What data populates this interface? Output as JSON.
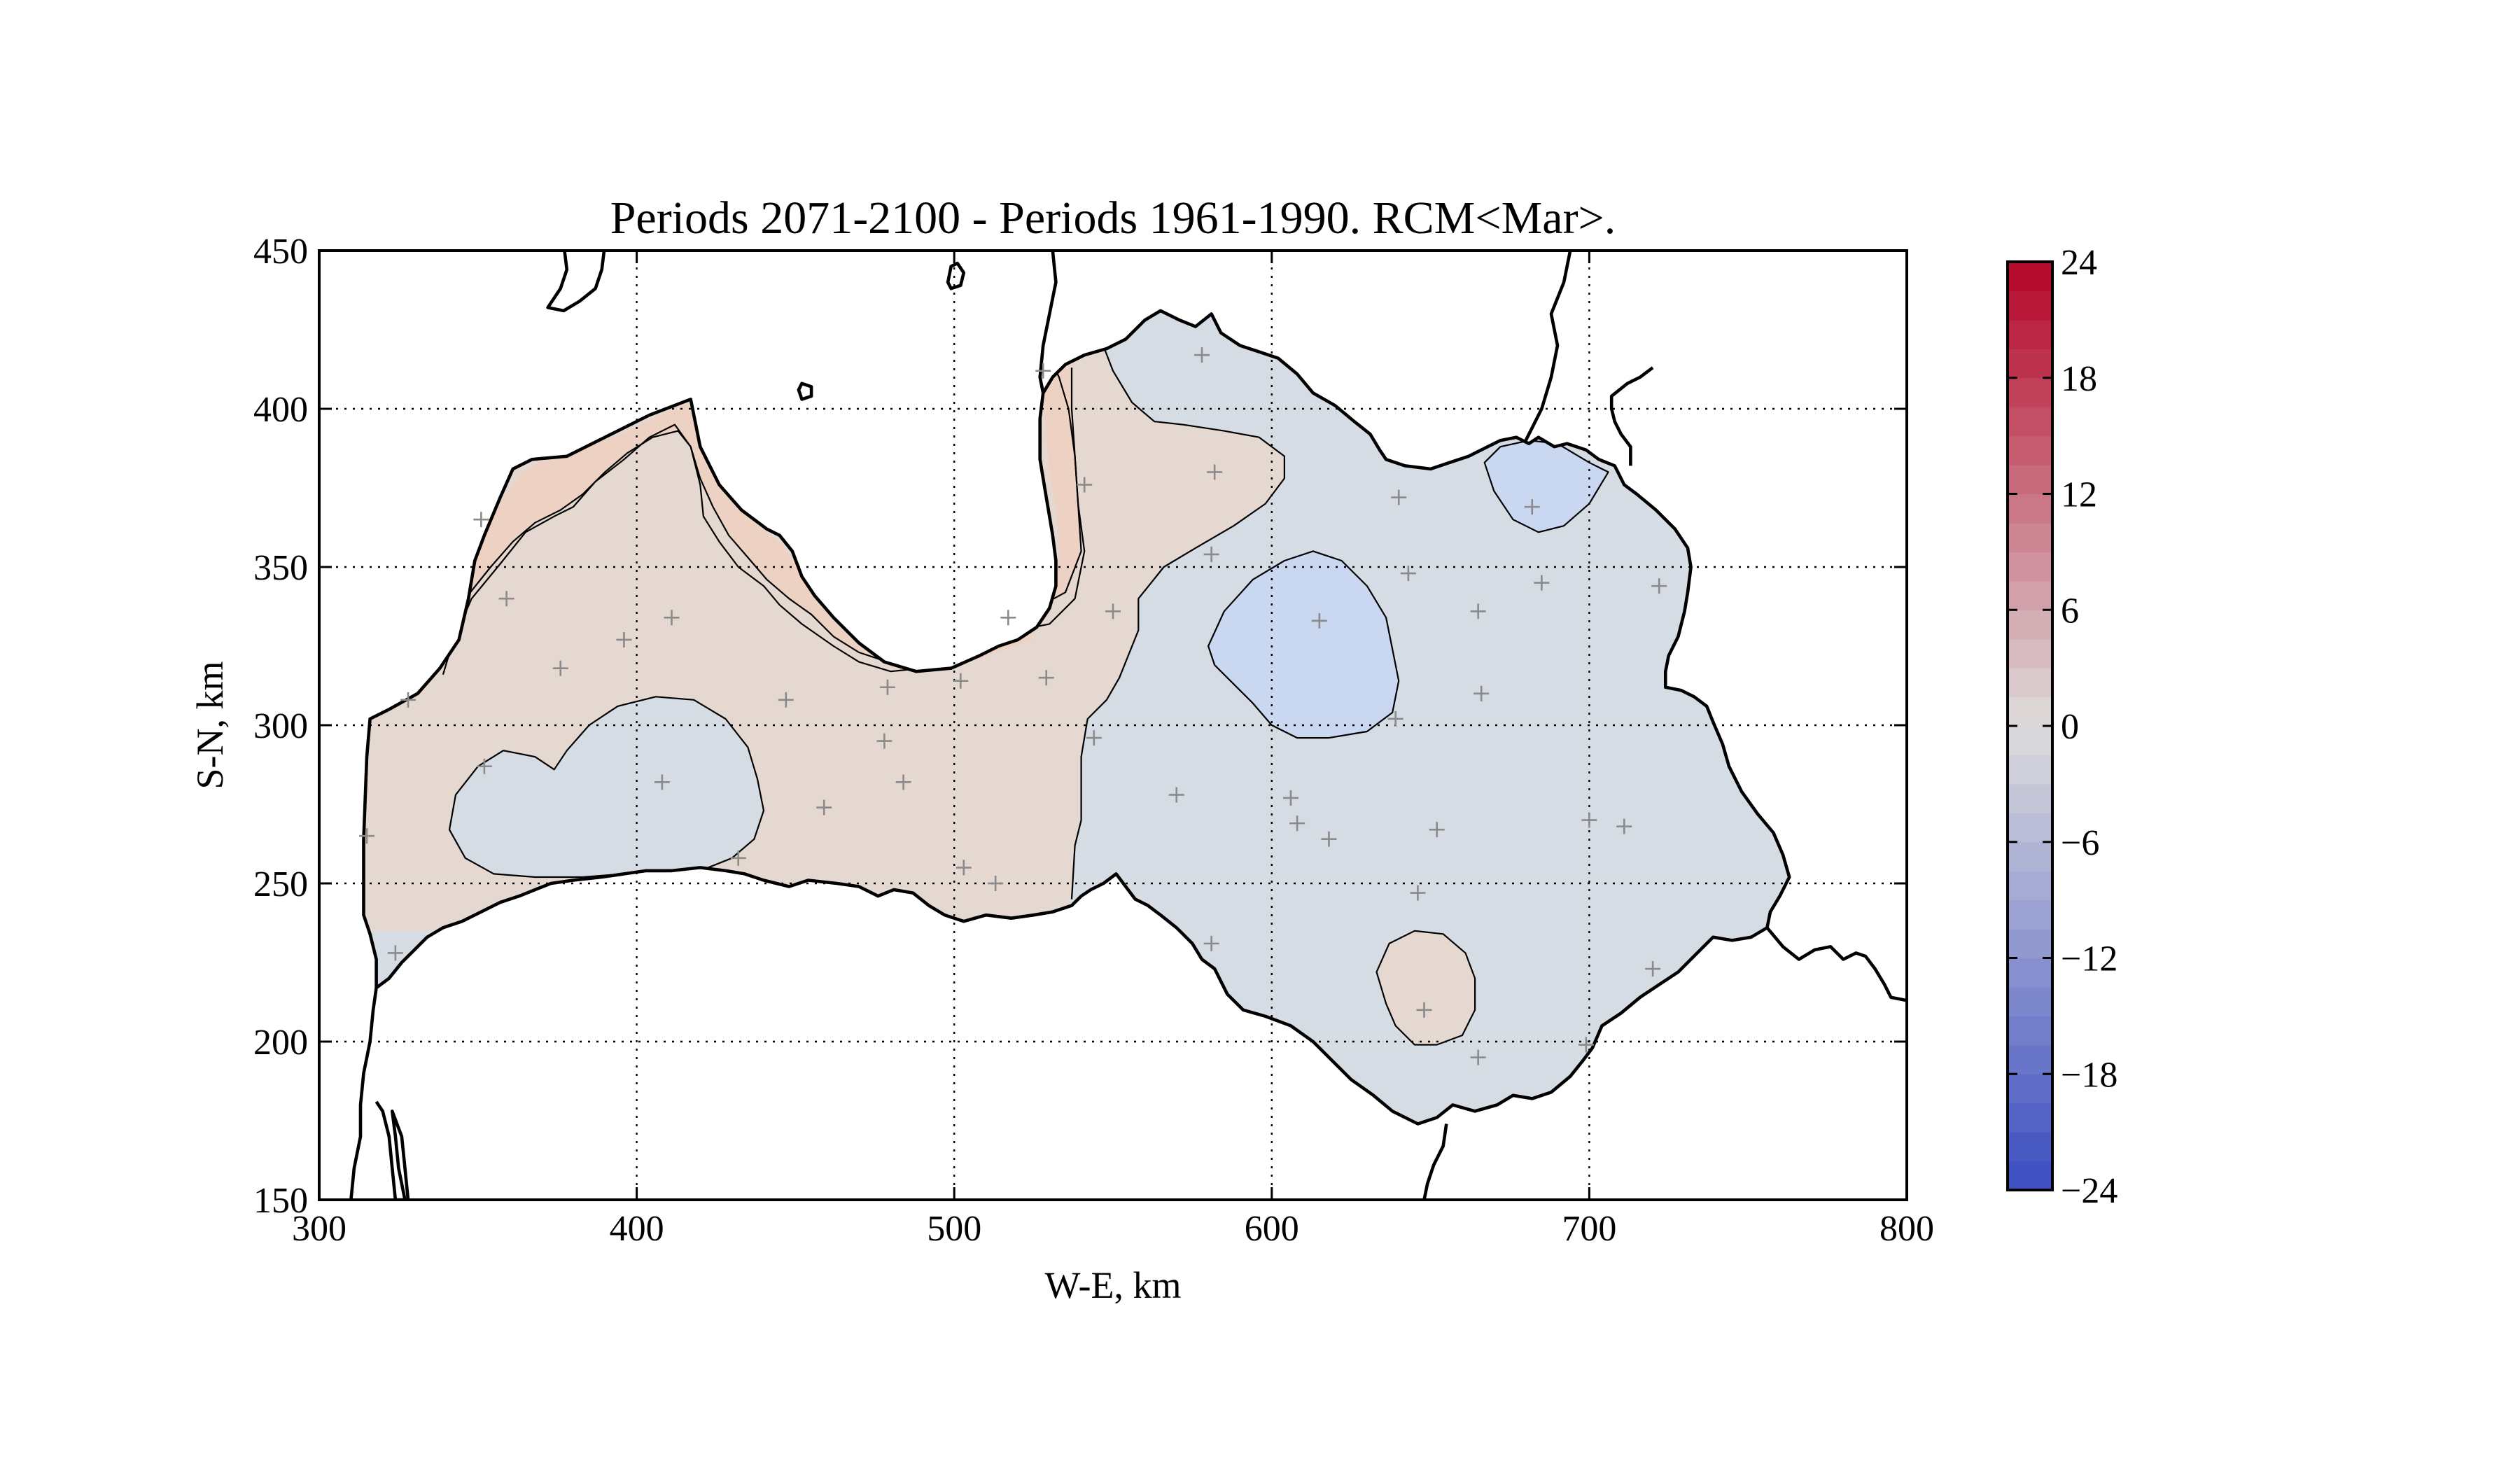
{
  "chart_data": {
    "type": "contour-map",
    "title": "Periods 2071-2100 - Periods 1961-1990. RCM<Mar>.",
    "xlabel": "W-E, km",
    "ylabel": "S-N, km",
    "xlim": [
      300,
      800
    ],
    "ylim": [
      150,
      450
    ],
    "xticks": [
      "300",
      "400",
      "500",
      "600",
      "700",
      "800"
    ],
    "yticks": [
      "150",
      "200",
      "250",
      "300",
      "350",
      "400",
      "450"
    ],
    "grid": true,
    "colorbar": {
      "min": -24,
      "max": 24,
      "step": 3,
      "ticks": [
        "−24",
        "−18",
        "−12",
        "−6",
        "0",
        "6",
        "12",
        "18",
        "24"
      ],
      "colormap": "coolwarm",
      "low_color": "#3b4cc0",
      "mid_color": "#dddddd",
      "high_color": "#b40426"
    },
    "fields": {
      "positive_0_3_color": "#e5d8d1",
      "negative_0_3_color": "#d6dce4",
      "negative_3_6_color": "#c9d7f0",
      "positive_3_6_color": "#edd2c3"
    },
    "stations": [
      [
        315,
        265
      ],
      [
        324,
        228
      ],
      [
        328,
        308
      ],
      [
        351,
        365
      ],
      [
        359,
        340
      ],
      [
        352,
        287
      ],
      [
        376,
        318
      ],
      [
        396,
        327
      ],
      [
        408,
        282
      ],
      [
        411,
        334
      ],
      [
        432,
        258
      ],
      [
        447,
        308
      ],
      [
        459,
        274
      ],
      [
        478,
        295
      ],
      [
        479,
        312
      ],
      [
        484,
        282
      ],
      [
        502,
        314
      ],
      [
        503,
        255
      ],
      [
        513,
        250
      ],
      [
        517,
        334
      ],
      [
        528,
        412
      ],
      [
        529,
        315
      ],
      [
        541,
        376
      ],
      [
        550,
        336
      ],
      [
        544,
        296
      ],
      [
        570,
        278
      ],
      [
        578,
        417
      ],
      [
        581,
        231
      ],
      [
        582,
        380
      ],
      [
        581,
        354
      ],
      [
        606,
        277
      ],
      [
        608,
        269
      ],
      [
        615,
        333
      ],
      [
        618,
        264
      ],
      [
        639,
        302
      ],
      [
        640,
        372
      ],
      [
        643,
        348
      ],
      [
        646,
        247
      ],
      [
        648,
        210
      ],
      [
        652,
        267
      ],
      [
        665,
        336
      ],
      [
        665,
        195
      ],
      [
        666,
        310
      ],
      [
        682,
        369
      ],
      [
        685,
        345
      ],
      [
        700,
        270
      ],
      [
        699,
        199
      ],
      [
        711,
        268
      ],
      [
        720,
        223
      ],
      [
        722,
        344
      ]
    ]
  }
}
